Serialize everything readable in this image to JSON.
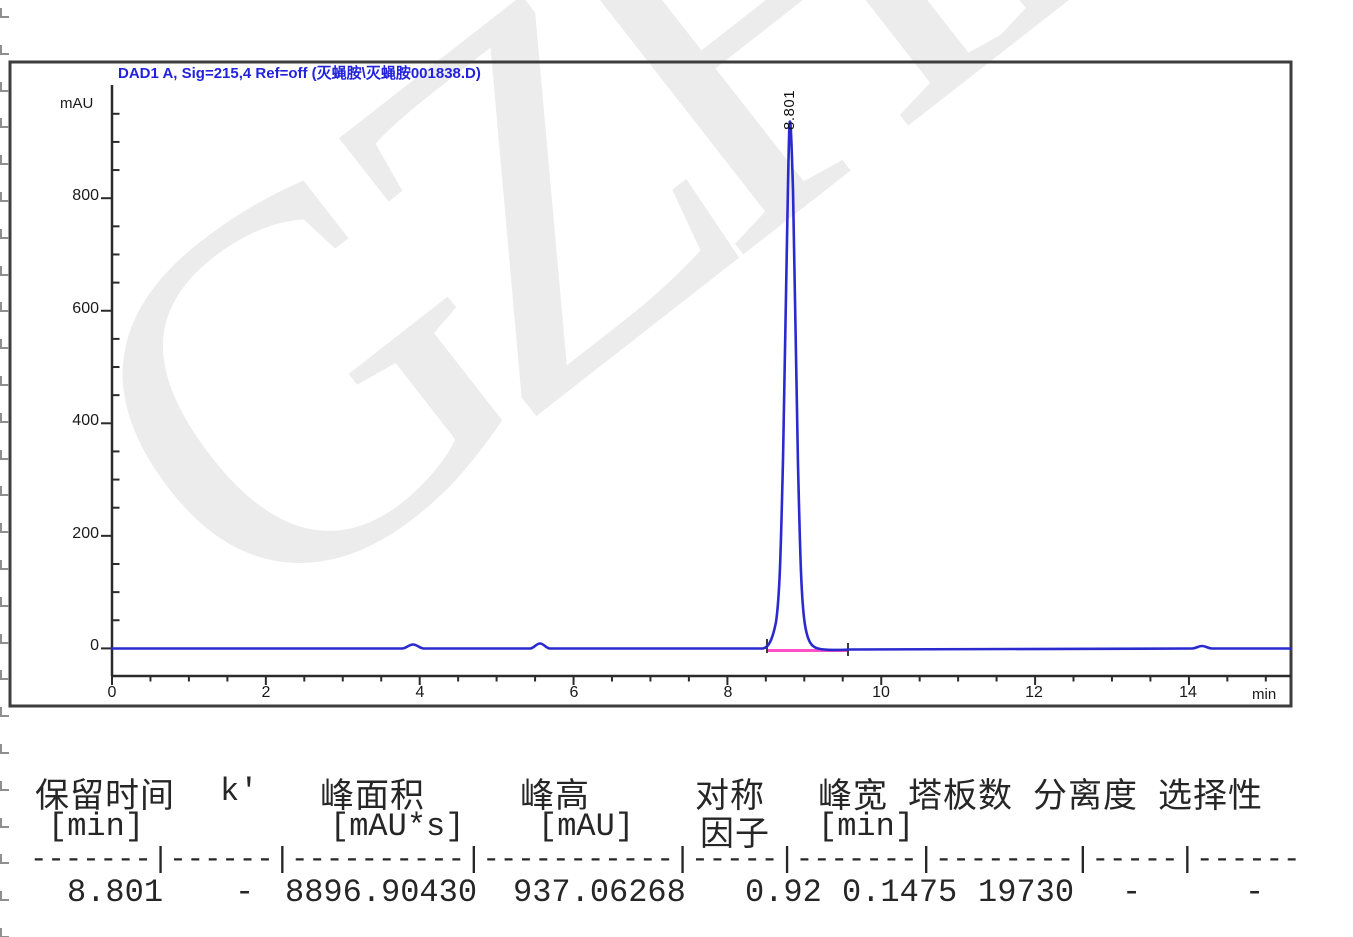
{
  "watermark": {
    "text": "GZHL"
  },
  "chart": {
    "title": "DAD1 A, Sig=215,4 Ref=off (灭蝇胺\\灭蝇胺001838.D)",
    "y_axis_unit": "mAU",
    "x_axis_unit": "min",
    "y_ticks": [
      "800",
      "600",
      "400",
      "200",
      "0"
    ],
    "x_ticks": [
      "0",
      "2",
      "4",
      "6",
      "8",
      "10",
      "12",
      "14"
    ],
    "peak_label": "8.801"
  },
  "chart_data": {
    "type": "line",
    "title": "DAD1 A, Sig=215,4 Ref=off (灭蝇胺\\灭蝇胺001838.D)",
    "xlabel": "min",
    "ylabel": "mAU",
    "xlim": [
      0,
      15.3
    ],
    "ylim": [
      -20,
      1000
    ],
    "x_ticks": [
      0,
      2,
      4,
      6,
      8,
      10,
      12,
      14
    ],
    "y_ticks": [
      0,
      200,
      400,
      600,
      800
    ],
    "grid": false,
    "series": [
      {
        "name": "DAD1 A signal",
        "color": "#2a2ace",
        "points": [
          [
            0,
            0
          ],
          [
            3.8,
            0
          ],
          [
            3.95,
            2
          ],
          [
            4.1,
            0
          ],
          [
            5.4,
            0
          ],
          [
            5.55,
            3
          ],
          [
            5.7,
            0
          ],
          [
            8.5,
            0
          ],
          [
            8.6,
            20
          ],
          [
            8.7,
            300
          ],
          [
            8.801,
            937.06
          ],
          [
            8.9,
            300
          ],
          [
            9.0,
            30
          ],
          [
            9.1,
            4
          ],
          [
            9.55,
            1
          ],
          [
            14.1,
            0
          ],
          [
            14.2,
            2
          ],
          [
            14.3,
            0
          ],
          [
            15.3,
            0
          ]
        ]
      }
    ],
    "peaks": [
      {
        "retention_time_min": 8.801,
        "label": "8.801",
        "height_mAU": 937.06268,
        "area_mAU_s": 8896.9043
      }
    ],
    "integration_baseline": {
      "color": "#ff50c8",
      "from_min": 8.55,
      "to_min": 9.55
    }
  },
  "table": {
    "headers_row1": {
      "retention_time": "保留时间",
      "k_prime": "k'",
      "area": "峰面积",
      "height": "峰高",
      "symmetry": "对称",
      "width": "峰宽",
      "plates": "塔板数",
      "resolution": "分离度",
      "selectivity": "选择性"
    },
    "headers_row2": {
      "retention_time_unit": "[min]",
      "area_unit": "[mAU*s]",
      "height_unit": "[mAU]",
      "symmetry_line2": "因子",
      "width_unit": "[min]"
    },
    "separator": "-------|------|----------|-----------|-----|-------|--------|-----|------",
    "row": {
      "retention_time": "8.801",
      "k_prime": "-",
      "area": "8896.90430",
      "height": "937.06268",
      "symmetry": "0.92",
      "width": "0.1475",
      "plates": "19730",
      "resolution": "-",
      "selectivity": "-"
    }
  }
}
